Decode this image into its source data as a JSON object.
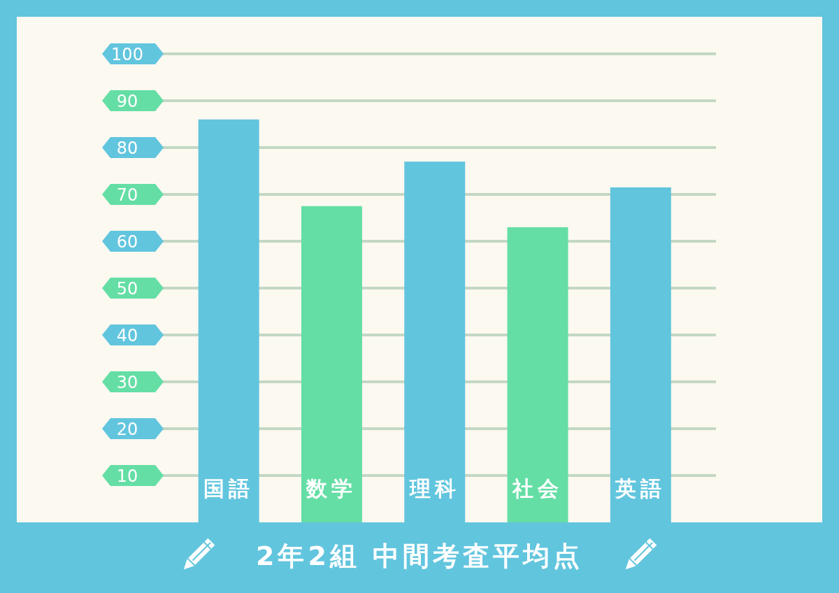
{
  "chart_data": {
    "type": "bar",
    "title": "2年2組 中間考査平均点",
    "categories": [
      "国語",
      "数学",
      "理科",
      "社会",
      "英語"
    ],
    "values": [
      86,
      67.5,
      77,
      63,
      71.5
    ],
    "colors": [
      "#62c5de",
      "#64dea5",
      "#62c5de",
      "#64dea5",
      "#62c5de"
    ],
    "ylim": [
      0,
      100
    ],
    "yticks": [
      10,
      20,
      30,
      40,
      50,
      60,
      70,
      80,
      90,
      100
    ],
    "grid": "y"
  }
}
